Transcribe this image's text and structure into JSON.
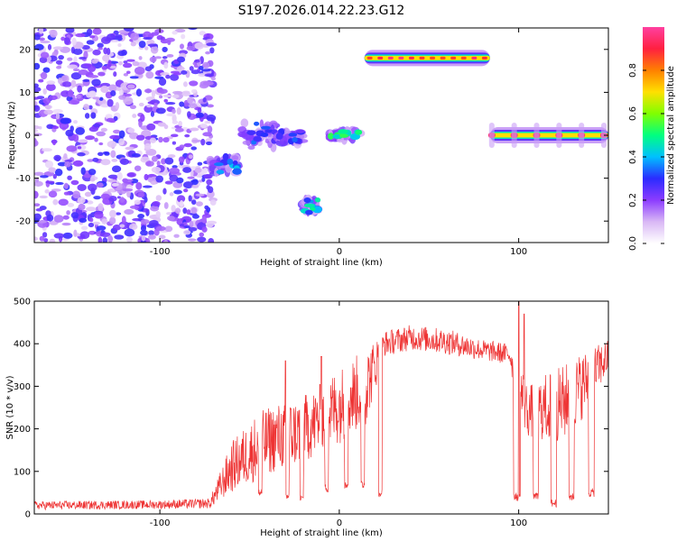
{
  "chart_data": [
    {
      "type": "heatmap",
      "title": "S197.2026.014.22.23.G12",
      "xlabel": "Height of straight line (km)",
      "ylabel": "Frequency (Hz)",
      "xlim": [
        -170,
        150
      ],
      "ylim": [
        -25,
        25
      ],
      "xticks": [
        -100,
        0,
        100
      ],
      "yticks": [
        -20,
        -10,
        0,
        10,
        20
      ],
      "colorbar": {
        "label": "Normalized spectral amplitude",
        "range": [
          0.0,
          1.0
        ],
        "ticks": [
          "0.0",
          "0.2",
          "0.4",
          "0.6",
          "0.8"
        ],
        "colors": [
          "#ffffff",
          "#d9b8f5",
          "#8c3cff",
          "#2b2bff",
          "#00c0ff",
          "#00ff80",
          "#80ff00",
          "#ffe000",
          "#ff8000",
          "#ff2040",
          "#ff40a0"
        ]
      },
      "segments": [
        {
          "x": [
            -170,
            -70
          ],
          "y": [
            -25,
            25
          ],
          "kind": "noise",
          "peak": 0.25
        },
        {
          "x": [
            -72,
            -56
          ],
          "y": [
            -9,
            -5
          ],
          "kind": "cluster",
          "peak": 0.45
        },
        {
          "x": [
            -55,
            -36
          ],
          "y": [
            -3,
            3
          ],
          "kind": "cluster",
          "peak": 0.4
        },
        {
          "x": [
            -34,
            -20
          ],
          "y": [
            -2,
            1
          ],
          "kind": "cluster",
          "peak": 0.35
        },
        {
          "x": [
            -20,
            -12
          ],
          "y": [
            -18,
            -15
          ],
          "kind": "cluster",
          "peak": 0.5
        },
        {
          "x": [
            -6,
            12
          ],
          "y": [
            -1,
            1
          ],
          "kind": "cluster",
          "peak": 0.55
        },
        {
          "x": [
            14,
            84
          ],
          "y": [
            18,
            18
          ],
          "kind": "line",
          "peak": 0.95
        },
        {
          "x": [
            84,
            150
          ],
          "y": [
            0,
            0
          ],
          "kind": "line",
          "peak": 0.9
        }
      ]
    },
    {
      "type": "line",
      "xlabel": "Height of straight line (km)",
      "ylabel": "SNR (10 * v/v)",
      "xlim": [
        -170,
        150
      ],
      "ylim": [
        0,
        500
      ],
      "xticks": [
        -100,
        0,
        100
      ],
      "yticks": [
        0,
        100,
        200,
        300,
        400,
        500
      ],
      "color": "#ee3333",
      "envelope": [
        [
          -170,
          20,
          10
        ],
        [
          -100,
          22,
          10
        ],
        [
          -72,
          25,
          12
        ],
        [
          -60,
          110,
          60
        ],
        [
          -45,
          160,
          80
        ],
        [
          -35,
          180,
          80
        ],
        [
          -25,
          190,
          80
        ],
        [
          -15,
          210,
          80
        ],
        [
          -5,
          240,
          90
        ],
        [
          5,
          270,
          90
        ],
        [
          15,
          300,
          90
        ],
        [
          25,
          400,
          30
        ],
        [
          40,
          415,
          30
        ],
        [
          60,
          405,
          30
        ],
        [
          80,
          385,
          25
        ],
        [
          95,
          375,
          25
        ],
        [
          100,
          300,
          80
        ],
        [
          105,
          240,
          60
        ],
        [
          115,
          250,
          80
        ],
        [
          125,
          260,
          90
        ],
        [
          135,
          300,
          80
        ],
        [
          150,
          370,
          40
        ]
      ],
      "dips": [
        [
          -45,
          -43,
          50
        ],
        [
          -30,
          -28,
          40
        ],
        [
          -22,
          -20,
          35
        ],
        [
          -8,
          -6,
          60
        ],
        [
          3,
          5,
          70
        ],
        [
          12,
          14,
          70
        ],
        [
          22,
          24,
          50
        ],
        [
          97,
          101,
          40
        ],
        [
          108,
          111,
          40
        ],
        [
          118,
          121,
          25
        ],
        [
          128,
          131,
          40
        ],
        [
          139,
          142,
          50
        ]
      ],
      "spikes": [
        [
          -30,
          360
        ],
        [
          -10,
          370
        ],
        [
          100,
          500
        ],
        [
          103,
          470
        ]
      ]
    }
  ]
}
